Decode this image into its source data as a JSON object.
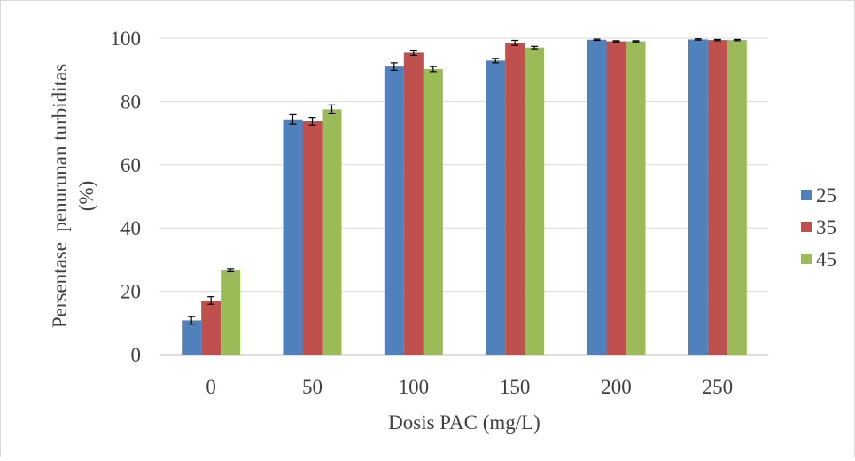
{
  "chart_data": {
    "type": "bar",
    "title": "",
    "xlabel": "Dosis PAC (mg/L)",
    "ylabel_lines": [
      "Persentase  penurunan turbiditas",
      "(%)"
    ],
    "categories": [
      "0",
      "50",
      "100",
      "150",
      "200",
      "250"
    ],
    "ylim": [
      0,
      100
    ],
    "yticks": [
      "0",
      "20",
      "40",
      "60",
      "80",
      "100"
    ],
    "grid": "horizontal",
    "legend_position": "right",
    "series": [
      {
        "name": "25",
        "color": "#4f81bd",
        "values": [
          10.8,
          74.3,
          91.0,
          92.9,
          99.5,
          99.6
        ],
        "errors": [
          1.2,
          1.5,
          1.2,
          0.7,
          0.2,
          0.2
        ]
      },
      {
        "name": "35",
        "color": "#c0504d",
        "values": [
          17.1,
          73.7,
          95.4,
          98.5,
          99.0,
          99.4
        ],
        "errors": [
          1.2,
          1.2,
          0.8,
          0.8,
          0.2,
          0.2
        ]
      },
      {
        "name": "45",
        "color": "#9bbb59",
        "values": [
          26.7,
          77.5,
          90.2,
          97.0,
          99.0,
          99.4
        ],
        "errors": [
          0.5,
          1.4,
          0.8,
          0.4,
          0.2,
          0.2
        ]
      }
    ]
  }
}
